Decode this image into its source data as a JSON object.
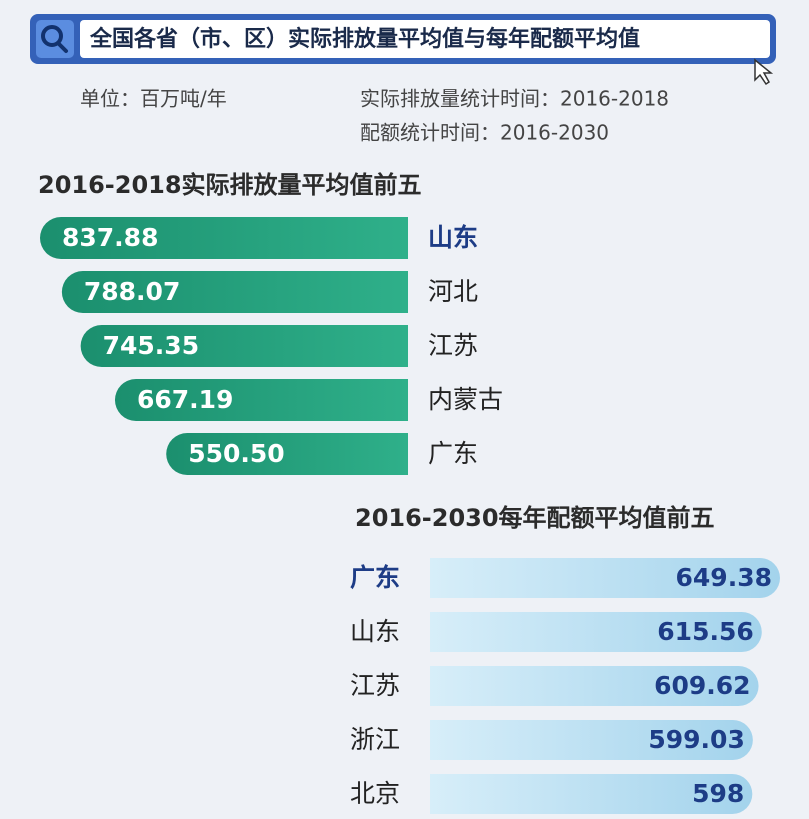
{
  "title": "全国各省（市、区）实际排放量平均值与每年配额平均值",
  "notes": [
    "单位：百万吨/年",
    "实际排放量统计时间：2016-2018",
    "配额统计时间：2016-2030"
  ],
  "chart_data": [
    {
      "type": "bar",
      "orientation": "horizontal",
      "title": "2016-2018实际排放量平均值前五",
      "categories": [
        "山东",
        "河北",
        "江苏",
        "内蒙古",
        "广东"
      ],
      "values": [
        837.88,
        788.07,
        745.35,
        667.19,
        550.5
      ],
      "value_labels": [
        "837.88",
        "788.07",
        "745.35",
        "667.19",
        "550.50"
      ],
      "color": "#1f9a7a"
    },
    {
      "type": "bar",
      "orientation": "horizontal",
      "title": "2016-2030每年配额平均值前五",
      "categories": [
        "广东",
        "山东",
        "江苏",
        "浙江",
        "北京"
      ],
      "values": [
        649.38,
        615.56,
        609.62,
        599.03,
        598
      ],
      "value_labels": [
        "649.38",
        "615.56",
        "609.62",
        "599.03",
        "598"
      ],
      "color": "#a8d7ee"
    }
  ]
}
